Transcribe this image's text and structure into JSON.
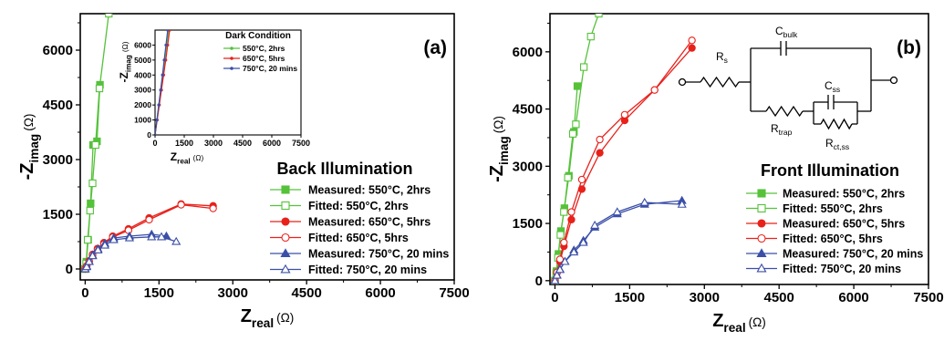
{
  "colors": {
    "green": "#55c23a",
    "red": "#e8211b",
    "blue": "#3b4fa8",
    "axis": "#000000"
  },
  "chart_data": [
    {
      "panel": "(a)",
      "type": "scatter",
      "xlabel": "Z",
      "xlabel_sub": "real",
      "xlabel_unit": "(Ω)",
      "ylabel": "-Z",
      "ylabel_sub": "imag",
      "ylabel_unit": "(Ω)",
      "xlim": [
        -100,
        7500
      ],
      "ylim": [
        -300,
        7000
      ],
      "xticks": [
        "0",
        "1500",
        "3000",
        "4500",
        "6000",
        "7500"
      ],
      "yticks": [
        "0",
        "1500",
        "3000",
        "4500",
        "6000"
      ],
      "condition_label": "Back Illumination",
      "series": [
        {
          "name": "Measured: 550°C, 2hrs",
          "color": "green",
          "marker": "square",
          "filled": true,
          "x": [
            0,
            25,
            60,
            110,
            160,
            240,
            300
          ],
          "y": [
            0,
            200,
            800,
            1800,
            3400,
            3500,
            5050
          ]
        },
        {
          "name": "Fitted:      550°C, 2hrs",
          "color": "green",
          "marker": "square",
          "filled": false,
          "x": [
            0,
            20,
            50,
            100,
            150,
            210,
            290,
            480
          ],
          "y": [
            0,
            150,
            800,
            1600,
            2350,
            3400,
            4950,
            7000
          ]
        },
        {
          "name": "Measured: 650°C, 5hrs",
          "color": "red",
          "marker": "circle",
          "filled": true,
          "x": [
            0,
            30,
            80,
            150,
            250,
            380,
            560,
            880,
            1300,
            1950,
            2600
          ],
          "y": [
            0,
            80,
            220,
            400,
            560,
            720,
            900,
            1100,
            1400,
            1780,
            1730
          ]
        },
        {
          "name": "Fitted:      650°C, 5hrs",
          "color": "red",
          "marker": "circle",
          "filled": false,
          "x": [
            0,
            30,
            80,
            150,
            250,
            380,
            560,
            880,
            1300,
            1950,
            2600
          ],
          "y": [
            0,
            70,
            200,
            380,
            530,
            680,
            870,
            1060,
            1350,
            1760,
            1660
          ]
        },
        {
          "name": "Measured: 750°C, 20 mins",
          "color": "blue",
          "marker": "triangle",
          "filled": true,
          "x": [
            0,
            30,
            80,
            150,
            260,
            400,
            580,
            900,
            1350,
            1650
          ],
          "y": [
            0,
            80,
            210,
            380,
            550,
            700,
            850,
            900,
            950,
            900
          ]
        },
        {
          "name": "Fitted:      750°C, 20 mins",
          "color": "blue",
          "marker": "triangle",
          "filled": false,
          "x": [
            0,
            30,
            80,
            150,
            260,
            400,
            580,
            900,
            1350,
            1550,
            1850
          ],
          "y": [
            0,
            60,
            200,
            360,
            520,
            650,
            800,
            850,
            880,
            880,
            750
          ]
        }
      ],
      "inset": {
        "title": "Dark Condition",
        "xlabel": "Z",
        "xlabel_sub": "real",
        "xlabel_unit": "(Ω)",
        "ylabel": "-Z",
        "ylabel_sub": "imag",
        "ylabel_unit": "(Ω)",
        "xlim": [
          0,
          7500
        ],
        "ylim": [
          0,
          7000
        ],
        "xticks": [
          "0",
          "1500",
          "3000",
          "4500",
          "6000",
          "7500"
        ],
        "yticks": [
          "0",
          "1000",
          "2000",
          "3000",
          "4000",
          "5000",
          "6000"
        ],
        "series": [
          {
            "name": "550°C, 2hrs",
            "color": "green",
            "x": [
              0,
              100,
              200,
              300,
              400,
              500,
              600,
              700
            ],
            "y": [
              0,
              1000,
              2000,
              3000,
              4000,
              5000,
              6000,
              7000
            ]
          },
          {
            "name": "650°C, 5hrs",
            "color": "red",
            "x": [
              0,
              110,
              220,
              330,
              440,
              550,
              650,
              750
            ],
            "y": [
              0,
              1000,
              2000,
              3000,
              4000,
              5000,
              6000,
              7000
            ]
          },
          {
            "name": "750°C, 20 mins",
            "color": "blue",
            "x": [
              0,
              95,
              190,
              285,
              380,
              470,
              560,
              650
            ],
            "y": [
              0,
              1000,
              2000,
              3000,
              4000,
              5000,
              6000,
              7000
            ]
          }
        ]
      }
    },
    {
      "panel": "(b)",
      "type": "scatter",
      "xlabel": "Z",
      "xlabel_sub": "real",
      "xlabel_unit": "(Ω)",
      "ylabel": "-Z",
      "ylabel_sub": "imag",
      "ylabel_unit": "(Ω)",
      "xlim": [
        -100,
        7500
      ],
      "ylim": [
        -100,
        7000
      ],
      "xticks": [
        "0",
        "1500",
        "3000",
        "4500",
        "6000",
        "7500"
      ],
      "yticks": [
        "0",
        "1500",
        "3000",
        "4500",
        "6000"
      ],
      "condition_label": "Front Illumination",
      "series": [
        {
          "name": "Measured: 550°C, 2hrs",
          "color": "green",
          "marker": "square",
          "filled": true,
          "x": [
            0,
            30,
            70,
            120,
            190,
            280,
            380,
            450
          ],
          "y": [
            0,
            250,
            700,
            1300,
            1900,
            2750,
            3900,
            5100
          ]
        },
        {
          "name": "Fitted:      550°C, 2hrs",
          "color": "green",
          "marker": "square",
          "filled": false,
          "x": [
            0,
            25,
            60,
            110,
            180,
            260,
            360,
            420,
            580,
            720,
            880
          ],
          "y": [
            0,
            200,
            600,
            1200,
            1800,
            2700,
            3850,
            4100,
            5600,
            6400,
            7000
          ]
        },
        {
          "name": "Measured: 650°C, 5hrs",
          "color": "red",
          "marker": "circle",
          "filled": true,
          "x": [
            0,
            40,
            100,
            180,
            330,
            540,
            900,
            1400,
            2000,
            2750
          ],
          "y": [
            0,
            200,
            500,
            900,
            1600,
            2400,
            3350,
            4200,
            5000,
            6100
          ]
        },
        {
          "name": "Fitted:      650°C, 5hrs",
          "color": "red",
          "marker": "circle",
          "filled": false,
          "x": [
            0,
            40,
            100,
            180,
            330,
            540,
            900,
            1400,
            2000,
            2750
          ],
          "y": [
            0,
            220,
            560,
            1000,
            1800,
            2650,
            3700,
            4350,
            5000,
            6300
          ]
        },
        {
          "name": "Measured: 750°C, 20 mins",
          "color": "blue",
          "marker": "triangle",
          "filled": true,
          "x": [
            0,
            40,
            100,
            200,
            380,
            570,
            800,
            1250,
            1800,
            2550
          ],
          "y": [
            0,
            150,
            300,
            500,
            800,
            1050,
            1400,
            1750,
            2000,
            2100
          ]
        },
        {
          "name": "Fitted:      750°C, 20 mins",
          "color": "blue",
          "marker": "triangle",
          "filled": false,
          "x": [
            0,
            40,
            100,
            200,
            380,
            570,
            800,
            1250,
            1800,
            2550
          ],
          "y": [
            0,
            140,
            290,
            500,
            750,
            1000,
            1450,
            1800,
            2050,
            2000
          ]
        }
      ],
      "circuit": {
        "labels": {
          "rs": "R",
          "rs_sub": "s",
          "cbulk": "C",
          "cbulk_sub": "bulk",
          "css": "C",
          "css_sub": "ss",
          "rtrap": "R",
          "rtrap_sub": "trap",
          "rct": "R",
          "rct_sub": "ct,ss"
        }
      }
    }
  ]
}
